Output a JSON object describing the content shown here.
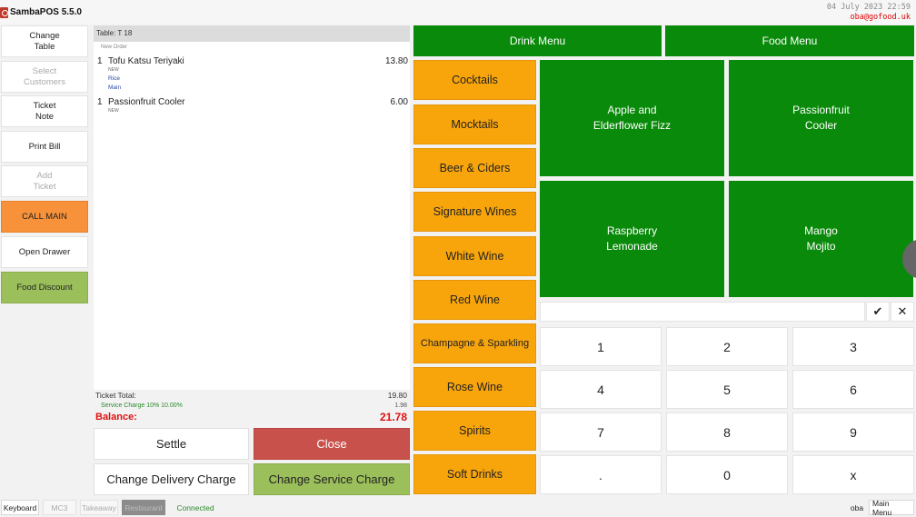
{
  "app": {
    "title": "SambaPOS 5.5.0",
    "datetime": "04 July 2023 22:59",
    "user_email": "oba@gofood.uk",
    "brand_color": "#c0392b"
  },
  "commands": [
    {
      "label": "Change\nTable",
      "state": "enabled"
    },
    {
      "label": "Select\nCustomers",
      "state": "disabled"
    },
    {
      "label": "Ticket\nNote",
      "state": "enabled"
    },
    {
      "label": "Print Bill",
      "state": "enabled"
    },
    {
      "label": "Add\nTicket",
      "state": "disabled"
    },
    {
      "label": "CALL MAIN",
      "state": "orange"
    },
    {
      "label": "Open Drawer",
      "state": "enabled"
    },
    {
      "label": "Food Discount",
      "state": "green"
    }
  ],
  "ticket": {
    "header": "Table: T 18",
    "new_order_label": "New Order",
    "orders": [
      {
        "qty": "1",
        "name": "Tofu Katsu Teriyaki",
        "price": "13.80",
        "tag": "NEW",
        "modifiers": [
          "Rice",
          "Main"
        ]
      },
      {
        "qty": "1",
        "name": "Passionfruit Cooler",
        "price": "6.00",
        "tag": "NEW",
        "modifiers": []
      }
    ],
    "total_label": "Ticket Total:",
    "total_value": "19.80",
    "service_label": "Service Charge 10% 10.00%",
    "service_value": "1.98",
    "balance_label": "Balance:",
    "balance_value": "21.78"
  },
  "actions": {
    "settle": "Settle",
    "close": "Close",
    "change_delivery": "Change Delivery Charge",
    "change_service": "Change Service Charge"
  },
  "menus": {
    "drink": "Drink Menu",
    "food": "Food Menu"
  },
  "categories": [
    "Cocktails",
    "Mocktails",
    "Beer & Ciders",
    "Signature Wines",
    "White Wine",
    "Red Wine",
    "Champagne & Sparkling",
    "Rose Wine",
    "Spirits",
    "Soft Drinks"
  ],
  "products": [
    "Apple and\nElderflower Fizz",
    "Passionfruit\nCooler",
    "Raspberry\nLemonade",
    "Mango\nMojito"
  ],
  "numpad": {
    "ok_icon": "check-icon",
    "clear_icon": "close-icon",
    "ok_glyph": "✔",
    "clear_glyph": "✕",
    "keys": [
      "1",
      "2",
      "3",
      "4",
      "5",
      "6",
      "7",
      "8",
      "9",
      ".",
      "0",
      "x"
    ]
  },
  "statusbar": {
    "keyboard": "Keyboard",
    "mc3": "MC3",
    "takeaway": "Takeaway",
    "restaurant": "Restaurant",
    "connected": "Connected",
    "user": "oba",
    "main_menu": "Main Menu"
  },
  "colors": {
    "menu_green": "#0a8a0a",
    "category_orange": "#f8a50c",
    "close_red": "#c9514c",
    "action_green": "#9bbf5b",
    "balance_red": "#d11111"
  }
}
